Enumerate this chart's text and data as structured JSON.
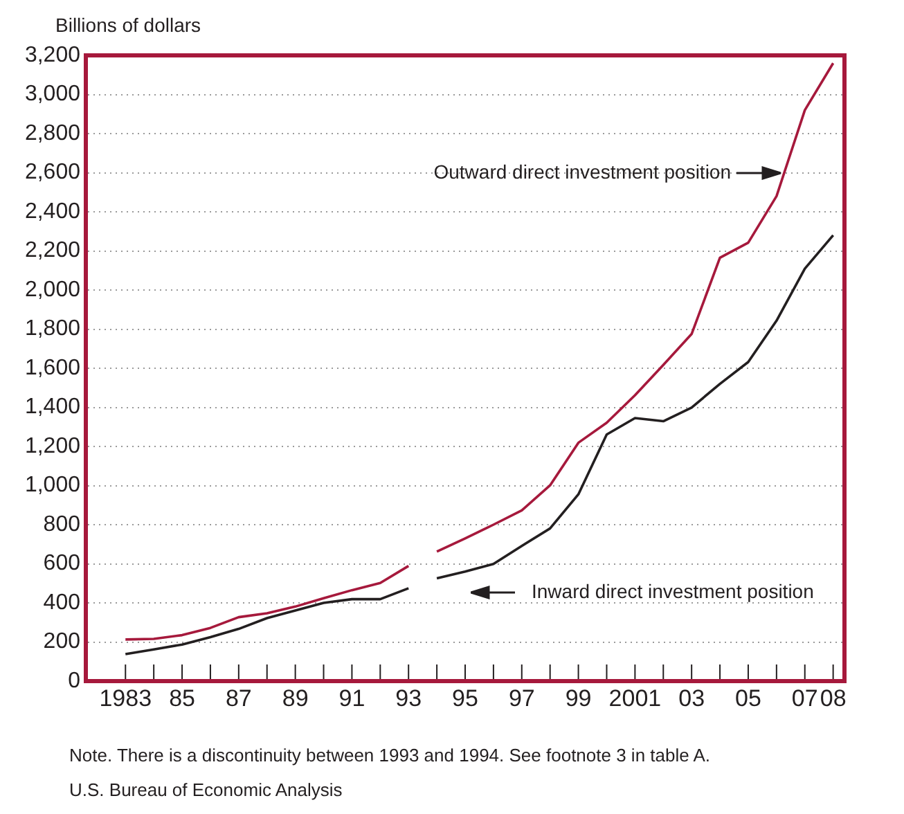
{
  "chart_data": {
    "type": "line",
    "ylabel": "Billions of dollars",
    "series": [
      {
        "color": "#a6193c",
        "x": [
          1983,
          1984,
          1985,
          1986,
          1987,
          1988,
          1989,
          1990,
          1991,
          1992,
          1993
        ],
        "values": [
          213,
          216,
          235,
          272,
          327,
          347,
          381,
          424,
          465,
          502,
          589
        ]
      },
      {
        "color": "#a6193c",
        "x": [
          1994,
          1995,
          1996,
          1997,
          1998,
          1999,
          2000,
          2001,
          2002,
          2003,
          2004,
          2005,
          2006,
          2007,
          2008
        ],
        "values": [
          662,
          730,
          800,
          873,
          1001,
          1219,
          1321,
          1462,
          1617,
          1775,
          2165,
          2242,
          2480,
          2920,
          3160
        ]
      },
      {
        "color": "#231f20",
        "x": [
          1983,
          1984,
          1985,
          1986,
          1987,
          1988,
          1989,
          1990,
          1991,
          1992,
          1993
        ],
        "values": [
          138,
          162,
          187,
          225,
          267,
          322,
          361,
          400,
          419,
          419,
          475
        ]
      },
      {
        "color": "#231f20",
        "x": [
          1994,
          1995,
          1996,
          1997,
          1998,
          1999,
          2000,
          2001,
          2002,
          2003,
          2004,
          2005,
          2006,
          2007,
          2008
        ],
        "values": [
          526,
          560,
          599,
          691,
          781,
          955,
          1261,
          1345,
          1329,
          1399,
          1520,
          1632,
          1843,
          2109,
          2280
        ]
      }
    ],
    "xlim": [
      1981.6,
      2008.4
    ],
    "xticks": [
      1983,
      {
        "value": 1984,
        "label": null
      },
      {
        "value": 1985,
        "label": "85"
      },
      {
        "value": 1986,
        "label": null
      },
      {
        "value": 1987,
        "label": "87"
      },
      {
        "value": 1988,
        "label": null
      },
      {
        "value": 1989,
        "label": "89"
      },
      {
        "value": 1990,
        "label": null
      },
      {
        "value": 1991,
        "label": "91"
      },
      {
        "value": 1992,
        "label": null
      },
      {
        "value": 1993,
        "label": "93"
      },
      {
        "value": 1994,
        "label": null
      },
      {
        "value": 1995,
        "label": "95"
      },
      {
        "value": 1996,
        "label": null
      },
      {
        "value": 1997,
        "label": "97"
      },
      {
        "value": 1998,
        "label": null
      },
      {
        "value": 1999,
        "label": "99"
      },
      {
        "value": 2000,
        "label": null
      },
      2001,
      {
        "value": 2002,
        "label": null
      },
      {
        "value": 2003,
        "label": "03"
      },
      {
        "value": 2004,
        "label": null
      },
      {
        "value": 2005,
        "label": "05"
      },
      {
        "value": 2006,
        "label": null
      },
      {
        "value": 2007,
        "label": "07"
      },
      {
        "value": 2008,
        "label": "08"
      }
    ],
    "ylim": [
      0,
      3200
    ],
    "yticks": [
      0,
      200,
      400,
      600,
      800,
      {
        "value": 1000,
        "label": "1,000"
      },
      {
        "value": 1200,
        "label": "1,200"
      },
      {
        "value": 1400,
        "label": "1,400"
      },
      {
        "value": 1600,
        "label": "1,600"
      },
      {
        "value": 1800,
        "label": "1,800"
      },
      {
        "value": 2000,
        "label": "2,000"
      },
      {
        "value": 2200,
        "label": "2,200"
      },
      {
        "value": 2400,
        "label": "2,400"
      },
      {
        "value": 2600,
        "label": "2,600"
      },
      {
        "value": 2800,
        "label": "2,800"
      },
      {
        "value": 3000,
        "label": "3,000"
      },
      {
        "value": 3200,
        "label": "3,200"
      }
    ],
    "grid": "y",
    "line_style": "solid",
    "marker": "none",
    "legend": false,
    "annotations": [
      "Outward direct investment position",
      "Inward direct investment position",
      "Note. There is a discontinuity between 1993 and 1994. See footnote 3 in table A.",
      "U.S. Bureau of Economic Analysis"
    ]
  }
}
